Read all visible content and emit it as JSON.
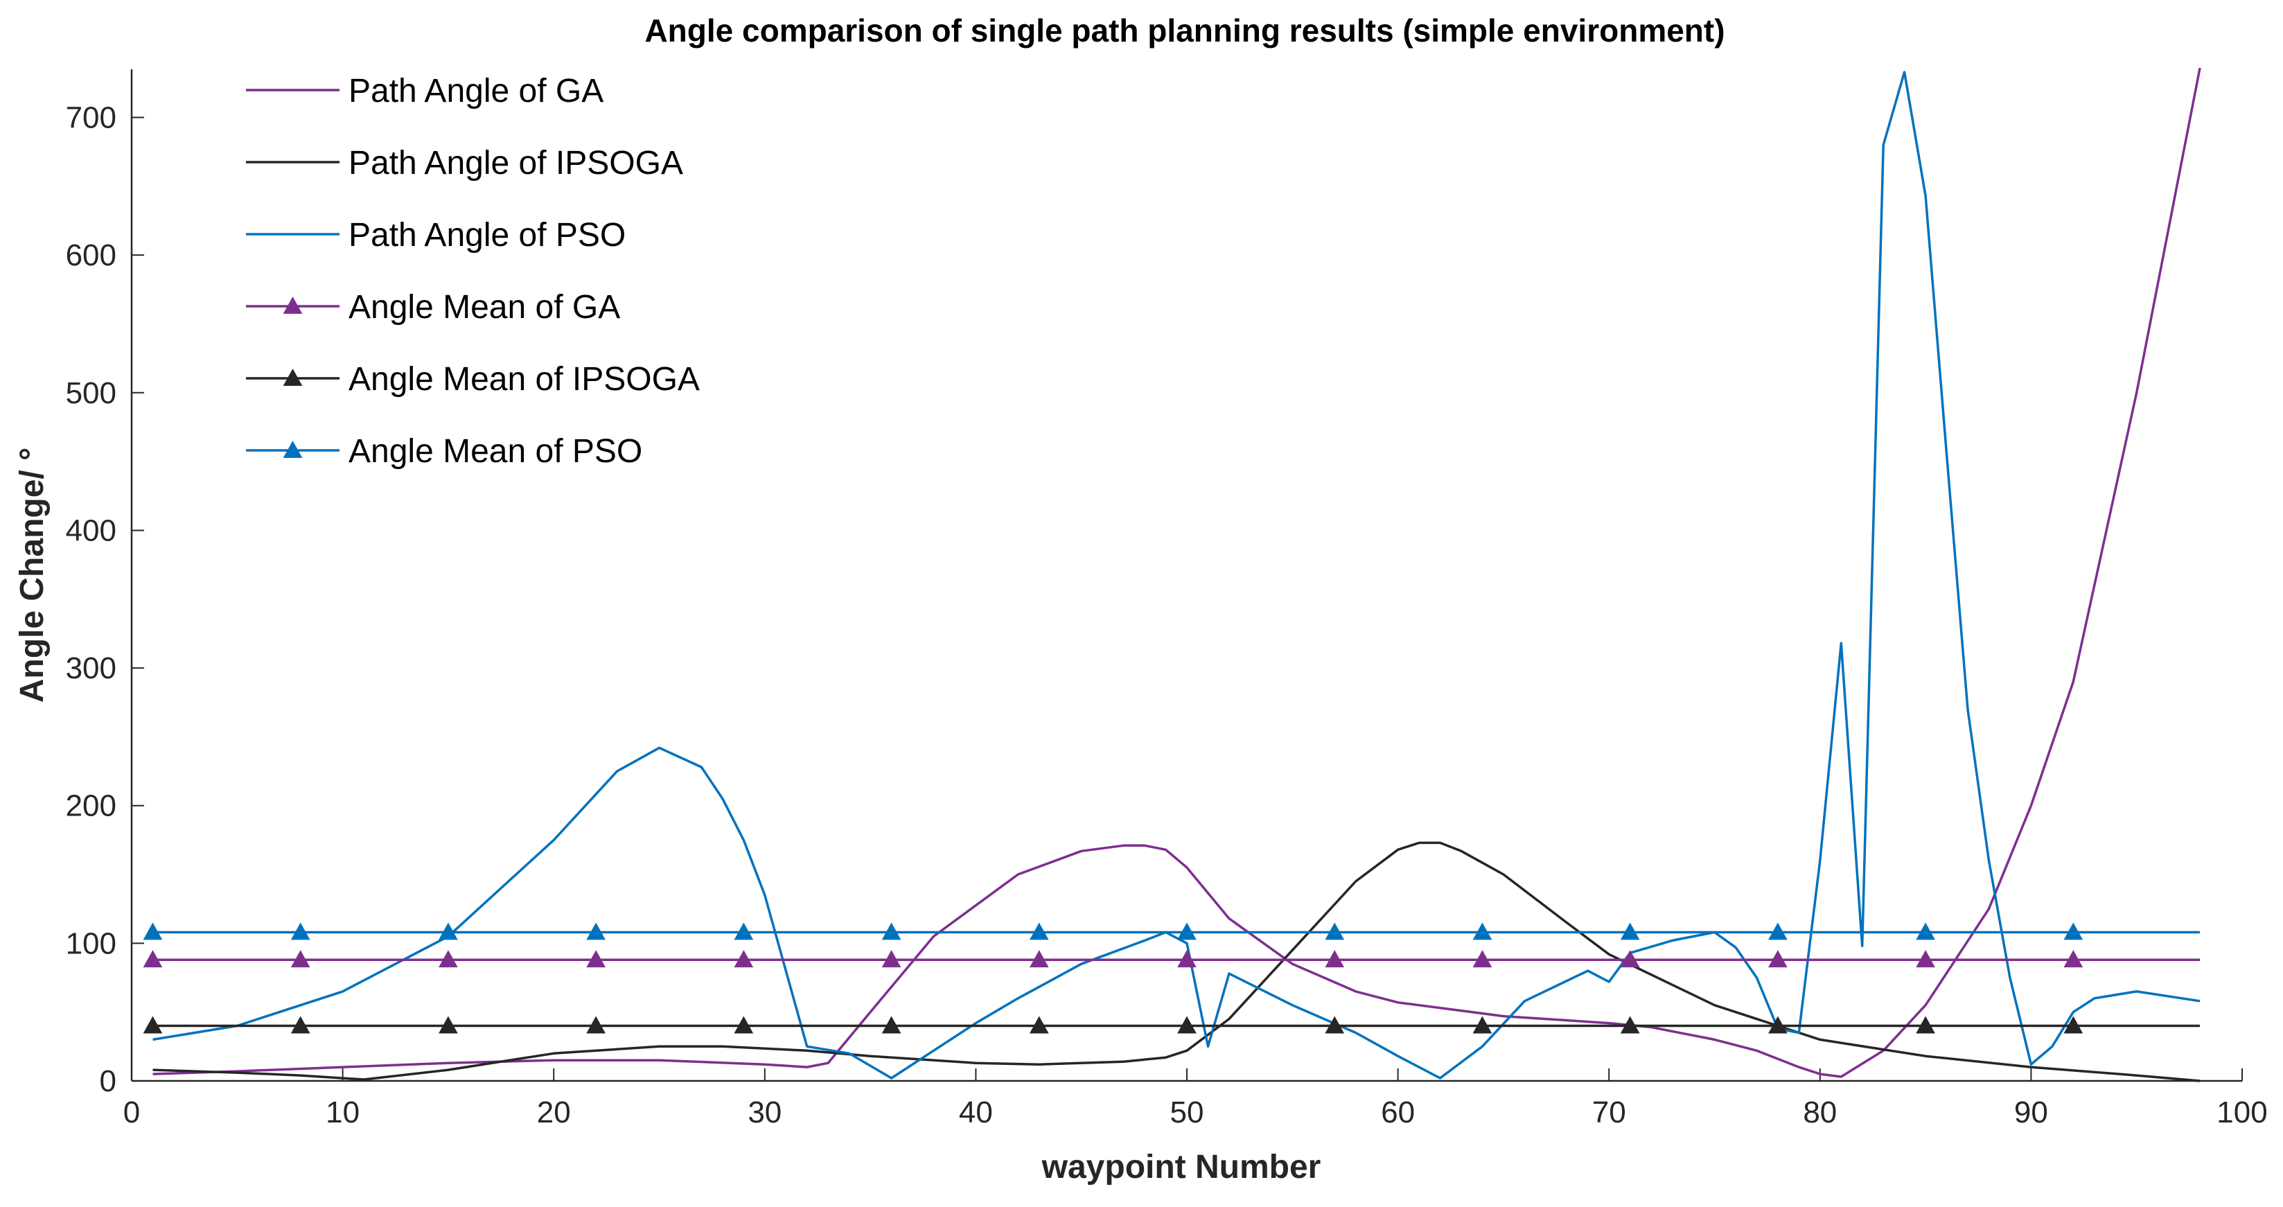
{
  "chart_data": {
    "type": "line",
    "title": "Angle comparison of single path planning results (simple environment)",
    "xlabel": "waypoint Number",
    "ylabel": "Angle Change/ °",
    "xlim": [
      0,
      100
    ],
    "ylim": [
      0,
      735
    ],
    "xticks": [
      0,
      10,
      20,
      30,
      40,
      50,
      60,
      70,
      80,
      90,
      100
    ],
    "yticks": [
      0,
      100,
      200,
      300,
      400,
      500,
      600,
      700
    ],
    "legend_position": "top-left",
    "colors": {
      "GA": "#7E2F8E",
      "IPSOGA": "#262626",
      "PSO": "#0072BD",
      "axis": "#262626"
    },
    "series": [
      {
        "name": "Path Angle of GA",
        "color": "#7E2F8E",
        "marker": "none",
        "x": [
          1,
          5,
          10,
          15,
          20,
          25,
          30,
          32,
          33,
          35,
          38,
          42,
          45,
          47,
          48,
          49,
          50,
          52,
          55,
          58,
          60,
          65,
          70,
          72,
          75,
          77,
          79,
          80,
          81,
          83,
          85,
          88,
          90,
          92,
          95,
          98
        ],
        "y": [
          5,
          7,
          10,
          13,
          15,
          15,
          12,
          10,
          13,
          50,
          105,
          150,
          167,
          171,
          171,
          168,
          155,
          118,
          85,
          65,
          57,
          47,
          42,
          39,
          30,
          22,
          10,
          5,
          3,
          22,
          55,
          125,
          200,
          290,
          500,
          736
        ]
      },
      {
        "name": "Path Angle of IPSOGA",
        "color": "#262626",
        "marker": "none",
        "x": [
          1,
          5,
          8,
          11,
          15,
          20,
          25,
          28,
          32,
          35,
          40,
          43,
          47,
          49,
          50,
          52,
          55,
          58,
          60,
          61,
          62,
          63,
          65,
          68,
          70,
          75,
          80,
          85,
          90,
          95,
          98
        ],
        "y": [
          8,
          6,
          4,
          1,
          8,
          20,
          25,
          25,
          22,
          18,
          13,
          12,
          14,
          17,
          22,
          45,
          95,
          145,
          168,
          173,
          173,
          167,
          150,
          115,
          92,
          55,
          30,
          18,
          10,
          4,
          0
        ]
      },
      {
        "name": "Path Angle of PSO",
        "color": "#0072BD",
        "marker": "none",
        "x": [
          1,
          5,
          10,
          15,
          20,
          23,
          25,
          27,
          28,
          29,
          30,
          32,
          34,
          36,
          38,
          40,
          42,
          45,
          48,
          49,
          50,
          51,
          52,
          55,
          58,
          60,
          62,
          64,
          66,
          69,
          70,
          71,
          73,
          75,
          76,
          77,
          78,
          79,
          80,
          81,
          82,
          83,
          84,
          85,
          86,
          87,
          88,
          89,
          90,
          91,
          92,
          93,
          95,
          98
        ],
        "y": [
          30,
          40,
          65,
          105,
          175,
          225,
          242,
          228,
          205,
          175,
          135,
          25,
          20,
          2,
          22,
          42,
          60,
          85,
          102,
          108,
          100,
          25,
          78,
          55,
          35,
          18,
          2,
          25,
          58,
          80,
          72,
          93,
          102,
          108,
          97,
          75,
          38,
          35,
          160,
          318,
          98,
          680,
          733,
          643,
          455,
          270,
          160,
          75,
          12,
          25,
          50,
          60,
          65,
          58
        ]
      },
      {
        "name": "Angle Mean of GA",
        "color": "#7E2F8E",
        "marker": "triangle",
        "x": [
          1,
          98
        ],
        "y": [
          88,
          88
        ],
        "marker_x": [
          1,
          8,
          15,
          22,
          29,
          36,
          43,
          50,
          57,
          64,
          71,
          78,
          85,
          92
        ]
      },
      {
        "name": "Angle Mean of IPSOGA",
        "color": "#262626",
        "marker": "triangle",
        "x": [
          1,
          98
        ],
        "y": [
          40,
          40
        ],
        "marker_x": [
          1,
          8,
          15,
          22,
          29,
          36,
          43,
          50,
          57,
          64,
          71,
          78,
          85,
          92
        ]
      },
      {
        "name": "Angle Mean of PSO",
        "color": "#0072BD",
        "marker": "triangle",
        "x": [
          1,
          98
        ],
        "y": [
          108,
          108
        ],
        "marker_x": [
          1,
          8,
          15,
          22,
          29,
          36,
          43,
          50,
          57,
          64,
          71,
          78,
          85,
          92
        ]
      }
    ]
  }
}
